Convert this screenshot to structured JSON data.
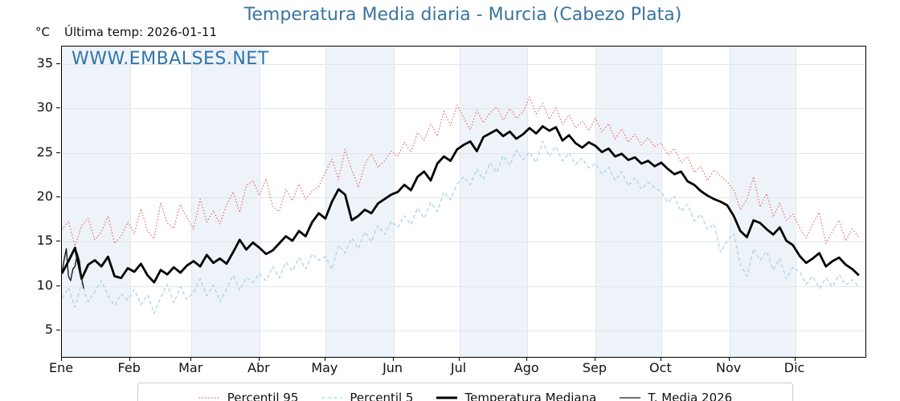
{
  "header": {
    "title": "Temperatura Media diaria - Murcia (Cabezo Plata)",
    "unit_label": "°C",
    "last_temp_label": "Última temp: 2026-01-11"
  },
  "watermark": "WWW.EMBALSES.NET",
  "colors": {
    "title": "#39749f",
    "watermark": "#2f74ad",
    "band": "#eef3f9",
    "grid": "#e2e6ea",
    "axis": "#000000",
    "p95": "#e04b4b",
    "p5": "#a9d4e6",
    "median": "#000000",
    "current": "#1a1a1a"
  },
  "chart_data": {
    "type": "line",
    "title": "Temperatura Media diaria - Murcia (Cabezo Plata)",
    "xlabel": "",
    "ylabel": "°C",
    "ylim": [
      2,
      37
    ],
    "yticks": [
      5,
      10,
      15,
      20,
      25,
      30,
      35
    ],
    "days_per_year": 366,
    "grid": true,
    "legend_position": "bottom",
    "x_months": [
      {
        "label": "Ene",
        "start_day": 0
      },
      {
        "label": "Feb",
        "start_day": 31
      },
      {
        "label": "Mar",
        "start_day": 59
      },
      {
        "label": "Abr",
        "start_day": 90
      },
      {
        "label": "May",
        "start_day": 120
      },
      {
        "label": "Jun",
        "start_day": 151
      },
      {
        "label": "Jul",
        "start_day": 181
      },
      {
        "label": "Ago",
        "start_day": 212
      },
      {
        "label": "Sep",
        "start_day": 243
      },
      {
        "label": "Oct",
        "start_day": 273
      },
      {
        "label": "Nov",
        "start_day": 304
      },
      {
        "label": "Dic",
        "start_day": 334
      }
    ],
    "series": [
      {
        "name": "Percentil 95",
        "style": "dotted",
        "color": "#e04b4b",
        "width": 1.1,
        "step_days": 3,
        "values": [
          16.4,
          17.3,
          14.5,
          16.8,
          17.6,
          15.2,
          16.1,
          17.9,
          14.8,
          15.6,
          17.2,
          15.9,
          18.7,
          16.2,
          15.3,
          19.4,
          17.1,
          16.5,
          19.2,
          17.7,
          16.4,
          19.8,
          17.2,
          18.5,
          17.0,
          19.1,
          20.6,
          18.3,
          21.3,
          21.9,
          20.2,
          22.1,
          19.0,
          18.4,
          20.9,
          19.6,
          21.5,
          19.8,
          20.7,
          21.2,
          22.8,
          24.3,
          22.0,
          25.4,
          23.1,
          21.1,
          23.7,
          24.9,
          23.4,
          24.1,
          25.2,
          24.6,
          26.2,
          25.1,
          27.3,
          26.4,
          28.3,
          26.9,
          29.7,
          28.1,
          30.4,
          29.0,
          27.6,
          29.8,
          28.4,
          29.5,
          30.2,
          28.7,
          30.0,
          28.9,
          29.6,
          31.3,
          29.4,
          30.6,
          28.8,
          30.1,
          28.2,
          29.3,
          27.8,
          28.6,
          27.5,
          28.9,
          27.4,
          28.3,
          26.6,
          27.7,
          26.2,
          27.1,
          25.9,
          26.7,
          25.7,
          26.1,
          24.8,
          25.5,
          23.9,
          24.6,
          22.8,
          23.5,
          21.9,
          23.1,
          22.4,
          21.7,
          20.9,
          18.6,
          19.8,
          22.3,
          18.9,
          20.4,
          17.8,
          19.3,
          17.4,
          18.1,
          16.6,
          15.4,
          17.0,
          18.3,
          14.8,
          16.2,
          17.4,
          15.1,
          16.4,
          15.5
        ]
      },
      {
        "name": "Percentil 5",
        "style": "dashed",
        "color": "#a9d4e6",
        "width": 1.3,
        "step_days": 3,
        "values": [
          8.6,
          9.8,
          7.6,
          10.3,
          8.2,
          9.4,
          10.6,
          8.9,
          7.8,
          9.1,
          8.4,
          9.6,
          7.9,
          9.0,
          6.9,
          8.7,
          10.2,
          8.1,
          9.9,
          8.5,
          9.3,
          10.8,
          8.9,
          10.1,
          8.2,
          9.7,
          11.2,
          9.5,
          11.0,
          10.4,
          11.4,
          10.6,
          12.2,
          10.9,
          12.7,
          11.7,
          13.2,
          11.9,
          13.6,
          12.9,
          13.3,
          11.9,
          14.6,
          13.7,
          15.4,
          14.2,
          16.1,
          15.0,
          16.8,
          15.8,
          17.3,
          16.6,
          17.9,
          16.9,
          18.8,
          17.6,
          19.4,
          18.4,
          20.6,
          19.7,
          21.5,
          22.3,
          21.4,
          23.2,
          22.0,
          23.9,
          22.8,
          24.7,
          23.6,
          25.3,
          24.2,
          25.1,
          23.9,
          26.3,
          24.6,
          25.7,
          24.1,
          25.0,
          23.7,
          24.4,
          23.3,
          23.8,
          22.6,
          23.4,
          21.9,
          22.9,
          21.3,
          22.2,
          20.9,
          21.7,
          21.1,
          20.6,
          19.4,
          20.1,
          18.4,
          19.2,
          17.3,
          18.1,
          16.4,
          17.0,
          13.8,
          15.1,
          15.9,
          12.4,
          11.1,
          14.2,
          12.9,
          13.9,
          11.8,
          13.1,
          10.8,
          12.1,
          11.6,
          10.2,
          11.1,
          9.7,
          10.9,
          9.9,
          11.3,
          10.1,
          10.7,
          9.9
        ]
      },
      {
        "name": "Temperatura Mediana",
        "style": "solid",
        "color": "#000000",
        "width": 2.8,
        "step_days": 3,
        "values": [
          11.4,
          12.8,
          14.3,
          10.8,
          12.4,
          12.9,
          12.2,
          13.3,
          11.1,
          10.9,
          12.0,
          11.6,
          12.5,
          11.2,
          10.4,
          11.8,
          11.3,
          12.1,
          11.5,
          12.3,
          12.8,
          12.2,
          13.5,
          12.6,
          13.1,
          12.5,
          13.8,
          15.2,
          14.1,
          14.9,
          14.3,
          13.6,
          14.0,
          14.8,
          15.6,
          15.1,
          16.2,
          15.6,
          17.2,
          18.2,
          17.6,
          19.5,
          20.9,
          20.3,
          17.4,
          17.9,
          18.6,
          18.2,
          19.3,
          19.8,
          20.3,
          20.6,
          21.4,
          20.8,
          22.3,
          22.9,
          21.9,
          23.8,
          24.6,
          24.1,
          25.4,
          25.9,
          26.3,
          25.2,
          26.8,
          27.2,
          27.6,
          26.9,
          27.4,
          26.6,
          27.1,
          27.8,
          27.2,
          28.0,
          27.5,
          27.9,
          26.4,
          27.0,
          26.1,
          25.6,
          26.2,
          25.8,
          25.1,
          25.5,
          24.6,
          24.9,
          24.2,
          24.5,
          23.8,
          24.1,
          23.5,
          23.9,
          23.2,
          22.6,
          22.9,
          21.8,
          21.4,
          20.7,
          20.2,
          19.8,
          19.5,
          19.1,
          17.9,
          16.2,
          15.5,
          17.4,
          17.1,
          16.4,
          15.8,
          16.6,
          15.1,
          14.6,
          13.4,
          12.6,
          13.1,
          13.7,
          12.2,
          12.8,
          13.2,
          12.4,
          11.9,
          11.2
        ]
      },
      {
        "name": "T. Media 2026",
        "style": "solid",
        "color": "#1a1a1a",
        "width": 1.4,
        "step_days": 1,
        "values": [
          11.4,
          12.9,
          14.2,
          11.1,
          10.6,
          11.9,
          12.2,
          13.7,
          12.8,
          10.8,
          9.7
        ]
      }
    ]
  }
}
